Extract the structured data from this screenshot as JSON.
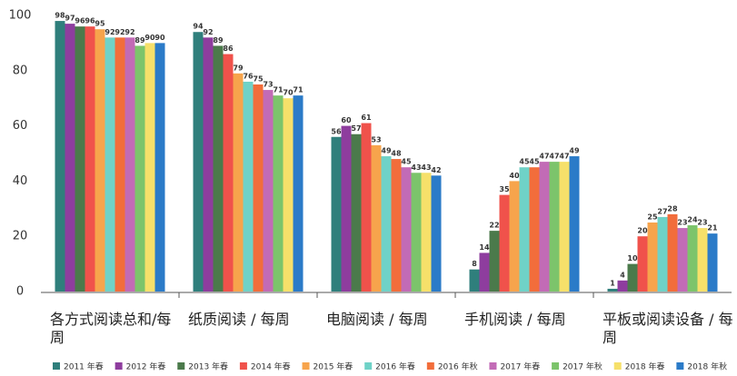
{
  "chart_data": {
    "type": "bar",
    "categories": [
      "各方式阅读总和/每周",
      "纸质阅读 / 每周",
      "电脑阅读 / 每周",
      "手机阅读 / 每周",
      "平板或阅读设备 / 每周"
    ],
    "series": [
      {
        "name": "2011 年春",
        "color": "#2f7f7c",
        "values": [
          98,
          94,
          56,
          8,
          1
        ]
      },
      {
        "name": "2012 年春",
        "color": "#8e3d9e",
        "values": [
          97,
          92,
          60,
          14,
          4
        ]
      },
      {
        "name": "2013 年春",
        "color": "#4b7a4b",
        "values": [
          96,
          89,
          57,
          22,
          10
        ]
      },
      {
        "name": "2014 年春",
        "color": "#f0524b",
        "values": [
          96,
          86,
          61,
          35,
          20
        ]
      },
      {
        "name": "2015 年春",
        "color": "#f7a44c",
        "values": [
          95,
          79,
          53,
          40,
          25
        ]
      },
      {
        "name": "2016 年春",
        "color": "#6fd2c7",
        "values": [
          92,
          76,
          49,
          45,
          27
        ]
      },
      {
        "name": "2016 年秋",
        "color": "#f26d3b",
        "values": [
          92,
          75,
          48,
          45,
          28
        ]
      },
      {
        "name": "2017 年春",
        "color": "#c26bb6",
        "values": [
          92,
          73,
          45,
          47,
          23
        ]
      },
      {
        "name": "2017 年秋",
        "color": "#7cc46b",
        "values": [
          89,
          71,
          43,
          47,
          24
        ]
      },
      {
        "name": "2018 年春",
        "color": "#f6e06a",
        "values": [
          90,
          70,
          43,
          47,
          23
        ]
      },
      {
        "name": "2018 年秋",
        "color": "#2b7bc8",
        "values": [
          90,
          71,
          42,
          49,
          21
        ]
      }
    ],
    "ylim": [
      0,
      100
    ],
    "yticks": [
      0,
      20,
      40,
      60,
      80,
      100
    ],
    "grid": false
  }
}
